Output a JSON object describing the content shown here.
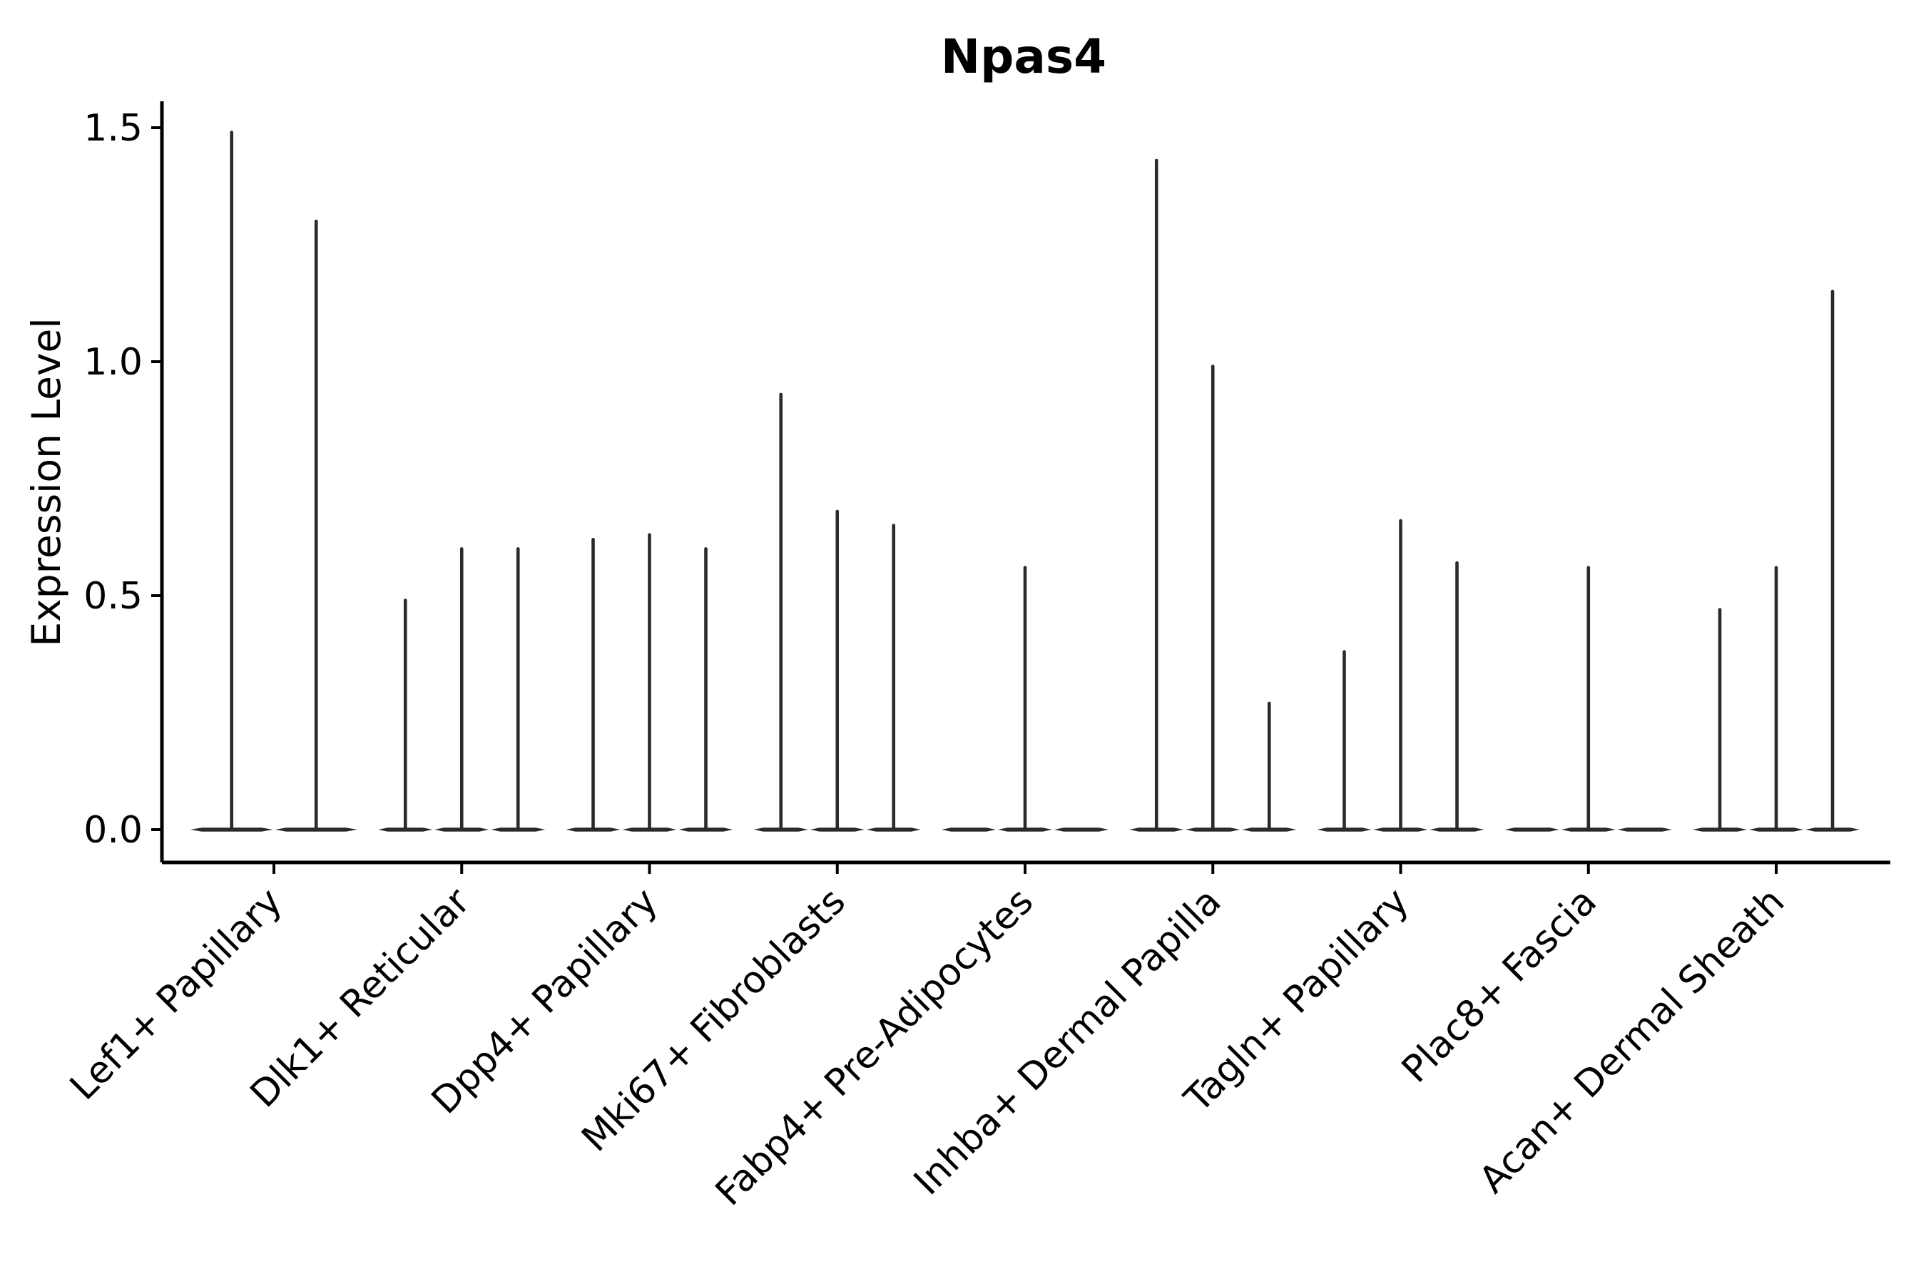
{
  "figure": {
    "background": "#ffffff"
  },
  "chart_data": {
    "type": "violin",
    "title": "Npas4",
    "xlabel": "",
    "ylabel": "Expression Level",
    "ylim": [
      -0.07,
      1.56
    ],
    "yticks": [
      0.0,
      0.5,
      1.0,
      1.5
    ],
    "ytick_labels": [
      "0.0",
      "0.5",
      "1.0",
      "1.5"
    ],
    "grid": false,
    "legend_position": "none",
    "x_tick_rotation_deg": 45,
    "categories": [
      "Lef1+ Papillary",
      "Dlk1+ Reticular",
      "Dpp4+ Papillary",
      "Mki67+ Fibroblasts",
      "Fabp4+ Pre-Adipocytes",
      "Inhba+ Dermal Papilla",
      "Tagln+ Papillary",
      "Plac8+ Fascia",
      "Acan+ Dermal Sheath"
    ],
    "groups": [
      {
        "category": "Lef1+ Papillary",
        "violin_maxima": [
          1.49,
          1.3
        ]
      },
      {
        "category": "Dlk1+ Reticular",
        "violin_maxima": [
          0.49,
          0.6,
          0.6
        ]
      },
      {
        "category": "Dpp4+ Papillary",
        "violin_maxima": [
          0.62,
          0.63,
          0.6
        ]
      },
      {
        "category": "Mki67+ Fibroblasts",
        "violin_maxima": [
          0.93,
          0.68,
          0.65
        ]
      },
      {
        "category": "Fabp4+ Pre-Adipocytes",
        "violin_maxima": [
          0,
          0.56,
          0
        ]
      },
      {
        "category": "Inhba+ Dermal Papilla",
        "violin_maxima": [
          1.43,
          0.99,
          0.27
        ]
      },
      {
        "category": "Tagln+ Papillary",
        "violin_maxima": [
          0.38,
          0.66,
          0.57
        ]
      },
      {
        "category": "Plac8+ Fascia",
        "violin_maxima": [
          0,
          0.56,
          0
        ]
      },
      {
        "category": "Acan+ Dermal Sheath",
        "violin_maxima": [
          0.47,
          0.56,
          1.15
        ]
      }
    ],
    "note": "Each violin is collapsed: density mass at 0 (flat lens on baseline) with a thin vertical spike up to its maximum expression value."
  },
  "colors": {
    "violin": "#2a2a2a",
    "axis": "#000000",
    "text": "#000000",
    "background": "#ffffff"
  }
}
